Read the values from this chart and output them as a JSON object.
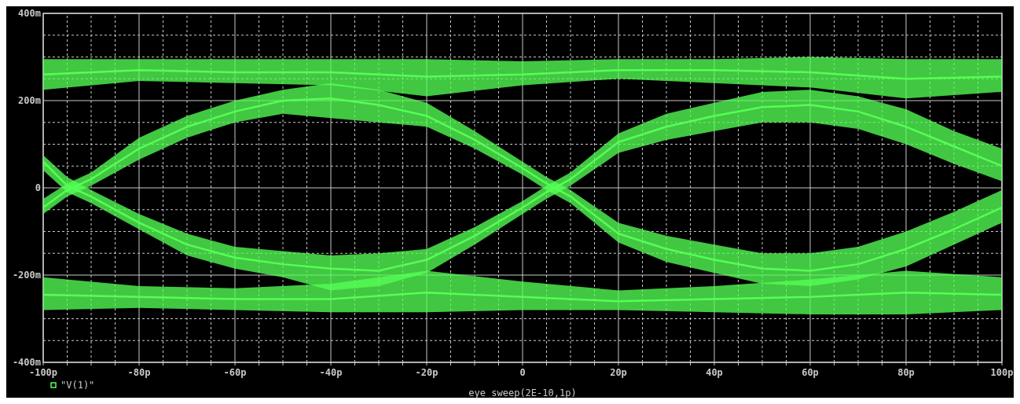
{
  "chart_data": {
    "type": "line",
    "xlabel": "eye_sweep(2E-10,1p)",
    "xlim": [
      -100,
      100
    ],
    "ylim": [
      -400,
      400
    ],
    "xticks": [
      {
        "value": -100,
        "label": "-100p"
      },
      {
        "value": -95,
        "label": null
      },
      {
        "value": -90,
        "label": null
      },
      {
        "value": -85,
        "label": null
      },
      {
        "value": -80,
        "label": "-80p"
      },
      {
        "value": -75,
        "label": null
      },
      {
        "value": -70,
        "label": null
      },
      {
        "value": -65,
        "label": null
      },
      {
        "value": -60,
        "label": "-60p"
      },
      {
        "value": -55,
        "label": null
      },
      {
        "value": -50,
        "label": null
      },
      {
        "value": -45,
        "label": null
      },
      {
        "value": -40,
        "label": "-40p"
      },
      {
        "value": -35,
        "label": null
      },
      {
        "value": -30,
        "label": null
      },
      {
        "value": -25,
        "label": null
      },
      {
        "value": -20,
        "label": "-20p"
      },
      {
        "value": -15,
        "label": null
      },
      {
        "value": -10,
        "label": null
      },
      {
        "value": -5,
        "label": null
      },
      0,
      {
        "value": 5,
        "label": null
      },
      {
        "value": 10,
        "label": null
      },
      {
        "value": 15,
        "label": null
      },
      {
        "value": 20,
        "label": "20p"
      },
      {
        "value": 25,
        "label": null
      },
      {
        "value": 30,
        "label": null
      },
      {
        "value": 35,
        "label": null
      },
      {
        "value": 40,
        "label": "40p"
      },
      {
        "value": 45,
        "label": null
      },
      {
        "value": 50,
        "label": null
      },
      {
        "value": 55,
        "label": null
      },
      {
        "value": 60,
        "label": "60p"
      },
      {
        "value": 65,
        "label": null
      },
      {
        "value": 70,
        "label": null
      },
      {
        "value": 75,
        "label": null
      },
      {
        "value": 80,
        "label": "80p"
      },
      {
        "value": 85,
        "label": null
      },
      {
        "value": 90,
        "label": null
      },
      {
        "value": 95,
        "label": null
      },
      {
        "value": 100,
        "label": "100p"
      }
    ],
    "yticks": [
      {
        "value": -400,
        "label": "-400m"
      },
      {
        "value": -350,
        "label": null
      },
      {
        "value": -300,
        "label": null
      },
      {
        "value": -200,
        "label": "-200m"
      },
      {
        "value": -150,
        "label": null
      },
      {
        "value": -100,
        "label": null
      },
      {
        "value": -50,
        "label": null
      },
      0,
      {
        "value": 50,
        "label": null
      },
      {
        "value": 100,
        "label": null
      },
      {
        "value": 150,
        "label": null
      },
      {
        "value": 200,
        "label": "200m"
      },
      {
        "value": 250,
        "label": null
      },
      {
        "value": 300,
        "label": null
      },
      {
        "value": 350,
        "label": null
      },
      {
        "value": 400,
        "label": "400m"
      }
    ],
    "grid": true,
    "legend": "bottom left",
    "series": [
      {
        "name": "\"V(1)\"",
        "color": "#55ff55",
        "x": [
          -100,
          -80,
          -60,
          -40,
          -20,
          0,
          20,
          40,
          60,
          80,
          100
        ],
        "values": [
          260,
          270,
          265,
          265,
          255,
          260,
          270,
          270,
          265,
          250,
          255
        ],
        "lower": [
          225,
          245,
          240,
          235,
          210,
          235,
          250,
          240,
          230,
          205,
          220
        ],
        "upper": [
          295,
          295,
          295,
          295,
          295,
          290,
          295,
          295,
          300,
          295,
          295
        ]
      },
      {
        "color": "#55ff55",
        "x": [
          -100,
          -80,
          -60,
          -40,
          -20,
          0,
          20,
          40,
          60,
          80,
          100
        ],
        "values": [
          -245,
          -250,
          -255,
          -255,
          -240,
          -250,
          -260,
          -255,
          -250,
          -240,
          -245
        ],
        "lower": [
          -280,
          -275,
          -280,
          -285,
          -285,
          -280,
          -280,
          -285,
          -290,
          -290,
          -280
        ],
        "upper": [
          -205,
          -225,
          -230,
          -220,
          -190,
          -215,
          -235,
          -225,
          -210,
          -190,
          -205
        ]
      },
      {
        "color": "#55ff55",
        "x": [
          -100,
          -95,
          -90,
          -80,
          -70,
          -60,
          -50,
          -40,
          -30,
          -20,
          -10,
          0,
          5,
          10,
          20,
          30,
          40,
          50,
          60,
          70,
          80,
          90,
          100
        ],
        "values": [
          -45,
          -5,
          20,
          90,
          140,
          175,
          200,
          205,
          190,
          165,
          110,
          45,
          10,
          -20,
          -105,
          -140,
          -165,
          -185,
          -190,
          -175,
          -140,
          -95,
          -45
        ],
        "lower": [
          -60,
          -20,
          5,
          65,
          115,
          150,
          170,
          160,
          150,
          140,
          90,
          30,
          -5,
          -35,
          -125,
          -170,
          -195,
          -220,
          -225,
          -210,
          -180,
          -130,
          -80
        ],
        "upper": [
          -25,
          10,
          35,
          115,
          165,
          200,
          225,
          240,
          225,
          195,
          130,
          60,
          25,
          -5,
          -80,
          -110,
          -130,
          -150,
          -150,
          -135,
          -100,
          -55,
          -5
        ]
      },
      {
        "color": "#55ff55",
        "x": [
          -100,
          -95,
          -90,
          -80,
          -70,
          -60,
          -50,
          -40,
          -30,
          -20,
          -10,
          0,
          5,
          10,
          20,
          30,
          40,
          50,
          60,
          70,
          80,
          90,
          100
        ],
        "values": [
          60,
          5,
          -20,
          -80,
          -130,
          -160,
          -175,
          -185,
          -190,
          -165,
          -110,
          -45,
          -10,
          20,
          105,
          140,
          165,
          185,
          190,
          175,
          140,
          95,
          50
        ],
        "lower": [
          40,
          -10,
          -35,
          -95,
          -155,
          -185,
          -205,
          -235,
          -225,
          -195,
          -130,
          -60,
          -25,
          5,
          80,
          110,
          130,
          150,
          150,
          135,
          100,
          55,
          15
        ],
        "upper": [
          75,
          25,
          -5,
          -60,
          -105,
          -135,
          -145,
          -155,
          -150,
          -140,
          -90,
          -30,
          5,
          35,
          125,
          170,
          195,
          220,
          225,
          210,
          180,
          130,
          90
        ]
      }
    ]
  }
}
